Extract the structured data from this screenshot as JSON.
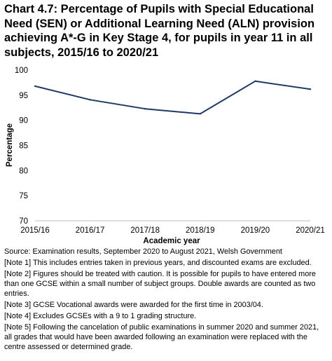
{
  "chart_data": {
    "type": "line",
    "title": "Chart 4.7: Percentage of Pupils with Special Educational Need (SEN) or Additional Learning Need (ALN) provision achieving A*-G in Key Stage 4, for pupils in year 11 in all subjects, 2015/16 to 2020/21",
    "xlabel": "Academic year",
    "ylabel": "Percentage",
    "categories": [
      "2015/16",
      "2016/17",
      "2017/18",
      "2018/19",
      "2019/20",
      "2020/21"
    ],
    "series": [
      {
        "values": [
          96.8,
          94.1,
          92.3,
          91.3,
          97.8,
          96.2
        ]
      }
    ],
    "ylim": [
      70,
      100
    ],
    "yticks": [
      70,
      75,
      80,
      85,
      90,
      95,
      100
    ],
    "grid": false,
    "line_color": "#1f3864"
  },
  "source": "Source: Examination results, September 2020 to August 2021, Welsh Government",
  "notes": [
    "[Note 1] This includes entries taken in previous years, and discounted exams are excluded.",
    "[Note 2] Figures should be treated with caution. It is possible for pupils to have entered more than one GCSE within a small number of subject groups. Double awards are counted as two entries.",
    "[Note 3] GCSE Vocational awards were awarded for the first time in 2003/04.",
    "[Note 4] Excludes GCSEs with a 9 to 1 grading structure.",
    "[Note 5]  Following the cancelation of public examinations in summer 2020 and summer 2021, all grades that would have been awarded following an examination were replaced with the centre assessed or determined grade."
  ]
}
